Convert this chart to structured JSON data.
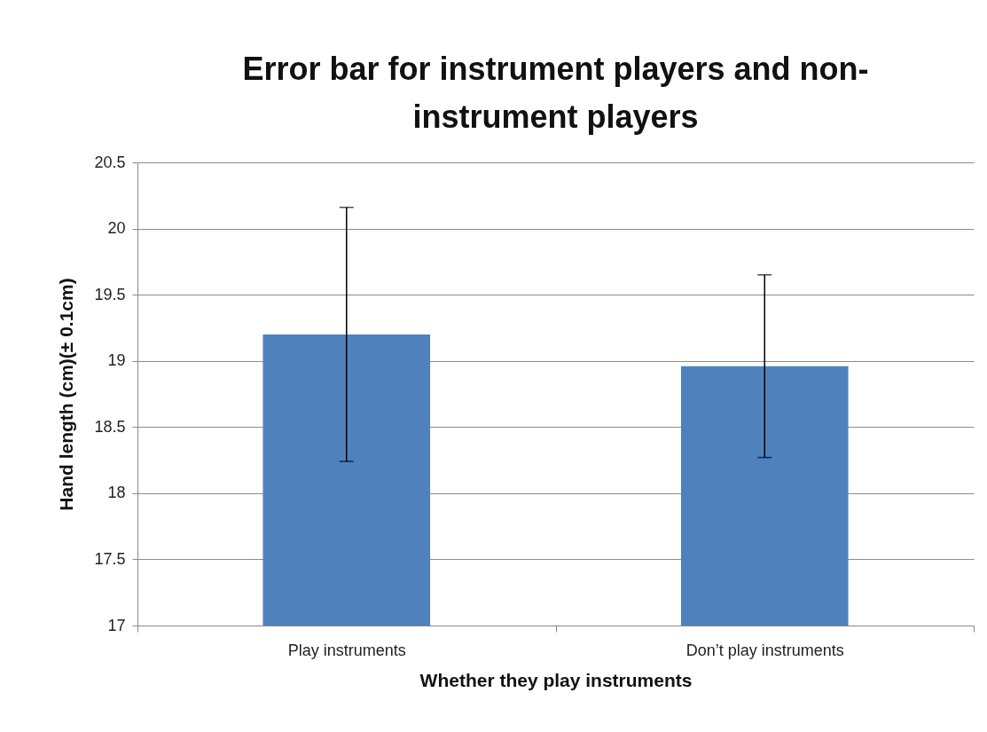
{
  "chart_data": {
    "type": "bar",
    "title": "Error bar for instrument players and non-instrument players",
    "xlabel": "Whether they play instruments",
    "ylabel": "Hand length (cm)(± 0.1cm)",
    "categories": [
      "Play instruments",
      "Don’t play instruments"
    ],
    "values": [
      19.2,
      18.96
    ],
    "errors": [
      0.96,
      0.69
    ],
    "color": "#4f81bd",
    "ylim": [
      17,
      20.5
    ],
    "yticks": [
      17,
      17.5,
      18,
      18.5,
      19,
      19.5,
      20,
      20.5
    ],
    "grid": "y"
  }
}
